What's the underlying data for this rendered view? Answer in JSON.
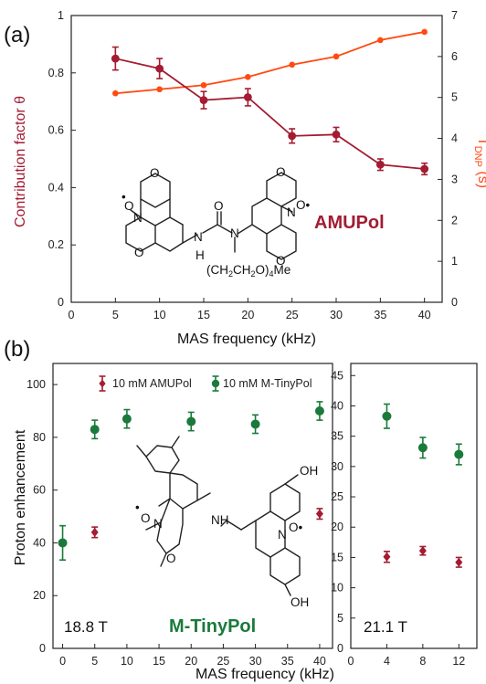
{
  "colors": {
    "contribution": "#a31c32",
    "tdnp": "#ff4a12",
    "amupol": "#a31c32",
    "mtinypol": "#1a7a3c"
  },
  "chart_data": [
    {
      "type": "line",
      "panel_label": "(a)",
      "xlabel": "MAS frequency (kHz)",
      "ylabel_left": "Contribution factor θ",
      "ylabel_right_main": "T",
      "ylabel_right_sub": "DNP",
      "ylabel_right_unit": " (s)",
      "x_ticks": [
        "0",
        "5",
        "10",
        "15",
        "20",
        "25",
        "30",
        "35",
        "40"
      ],
      "y_left_ticks": [
        "0",
        "0.2",
        "0.4",
        "0.6",
        "0.8",
        "1"
      ],
      "y_right_ticks": [
        "0",
        "1",
        "2",
        "3",
        "4",
        "5",
        "6",
        "7"
      ],
      "xlim": [
        0,
        42
      ],
      "ylim_left": [
        0,
        1
      ],
      "ylim_right": [
        0,
        7
      ],
      "grid": false,
      "annotation": "AMUPol",
      "series": [
        {
          "axis": "left",
          "x": [
            5,
            10,
            15,
            20,
            25,
            30,
            35,
            40
          ],
          "values": [
            0.85,
            0.815,
            0.705,
            0.715,
            0.58,
            0.585,
            0.48,
            0.465
          ],
          "errors": [
            0.04,
            0.035,
            0.03,
            0.03,
            0.025,
            0.025,
            0.02,
            0.02
          ]
        },
        {
          "axis": "right",
          "x": [
            5,
            10,
            15,
            20,
            25,
            30,
            35,
            40
          ],
          "values": [
            5.1,
            5.2,
            5.3,
            5.5,
            5.8,
            6.0,
            6.4,
            6.6
          ]
        }
      ]
    },
    {
      "type": "scatter",
      "panel_label": "(b)",
      "xlabel": "MAS frequency (kHz)",
      "ylabel": "Proton enhancement",
      "field_label": "18.8 T",
      "annotation": "M-TinyPol",
      "x_ticks": [
        "0",
        "5",
        "10",
        "15",
        "20",
        "25",
        "30",
        "35",
        "40"
      ],
      "y_ticks": [
        "0",
        "20",
        "40",
        "60",
        "80",
        "100"
      ],
      "xlim": [
        -1.5,
        42
      ],
      "ylim": [
        0,
        108
      ],
      "legend_position": "top",
      "series": [
        {
          "name": "10 mM AMUPol",
          "marker": "diamond",
          "x": [
            5,
            40
          ],
          "values": [
            44,
            51
          ],
          "errors": [
            2,
            2
          ]
        },
        {
          "name": "10 mM M-TinyPol",
          "marker": "circle",
          "x": [
            0,
            5,
            10,
            20,
            30,
            40
          ],
          "values": [
            40,
            83,
            87,
            86,
            85,
            90
          ],
          "errors": [
            6.5,
            3.5,
            3.5,
            3.5,
            3.5,
            3.5
          ]
        }
      ]
    },
    {
      "type": "scatter",
      "field_label": "21.1 T",
      "x_ticks": [
        "0",
        "4",
        "8",
        "12"
      ],
      "y_ticks": [
        "0",
        "5",
        "10",
        "15",
        "20",
        "25",
        "30",
        "35",
        "40",
        "45"
      ],
      "xlim": [
        0,
        14
      ],
      "ylim": [
        0,
        47
      ],
      "series": [
        {
          "marker": "diamond",
          "x": [
            4,
            8,
            12
          ],
          "values": [
            15.1,
            16.1,
            14.2
          ],
          "errors": [
            0.9,
            0.7,
            0.8
          ]
        },
        {
          "marker": "circle",
          "x": [
            4,
            8,
            12
          ],
          "values": [
            38.3,
            33.1,
            32.0
          ],
          "errors": [
            2.0,
            1.7,
            1.7
          ]
        }
      ]
    }
  ],
  "molecules": {
    "amupol": {
      "atoms": [
        "O",
        "O",
        "•",
        "O",
        "N",
        "N",
        "O•",
        "O",
        "N",
        "N",
        "H",
        "O",
        "O"
      ],
      "peg": "(CH",
      "peg_sub1": "2",
      "peg_mid": "CH",
      "peg_sub2": "2",
      "peg_end": "O)",
      "peg_sub3": "4",
      "peg_me": "Me"
    },
    "mtinypol": {
      "atoms": [
        "O",
        "•",
        "O",
        "N",
        "NH",
        "OH",
        "N",
        "O•",
        "OH"
      ]
    }
  }
}
